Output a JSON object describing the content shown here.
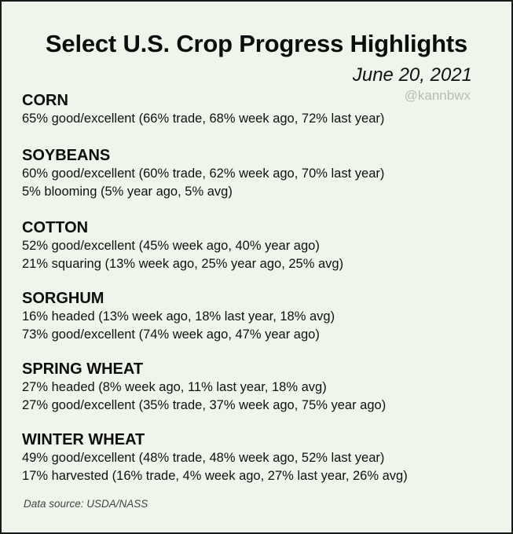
{
  "header": {
    "title": "Select U.S. Crop Progress Highlights",
    "date": "June 20, 2021",
    "handle": "@kannbwx"
  },
  "sections": [
    {
      "name": "CORN",
      "lines": [
        "65% good/excellent (66% trade, 68% week ago, 72% last year)"
      ]
    },
    {
      "name": "SOYBEANS",
      "lines": [
        "60% good/excellent (60% trade, 62% week ago, 70% last year)",
        "5% blooming (5% year ago, 5% avg)"
      ]
    },
    {
      "name": "COTTON",
      "lines": [
        "52% good/excellent (45% week ago, 40% year ago)",
        "21% squaring (13% week ago, 25% year ago, 25% avg)"
      ]
    },
    {
      "name": "SORGHUM",
      "lines": [
        "16% headed (13% week ago, 18% last year, 18% avg)",
        "73% good/excellent (74% week ago, 47% year ago)"
      ]
    },
    {
      "name": "SPRING WHEAT",
      "lines": [
        "27% headed (8% week ago, 11% last year, 18% avg)",
        "27% good/excellent (35% trade, 37% week ago, 75% year ago)"
      ]
    },
    {
      "name": "WINTER WHEAT",
      "lines": [
        "49% good/excellent (48% trade, 48% week ago, 52% last year)",
        "17% harvested (16% trade, 4% week ago, 27% last year, 26% avg)"
      ]
    }
  ],
  "footer": {
    "source": "Data source: USDA/NASS"
  },
  "colors": {
    "background": "#eef5ea",
    "border": "#1a1a1a",
    "handle": "#b7bcb4"
  }
}
